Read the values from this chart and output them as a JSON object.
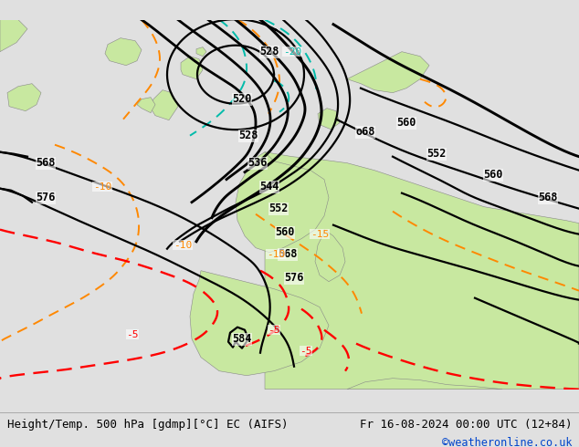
{
  "title_left": "Height/Temp. 500 hPa [gdmp][°C] EC (AIFS)",
  "title_right": "Fr 16-08-2024 00:00 UTC (12+84)",
  "credit": "©weatheronline.co.uk",
  "sea_color": "#c8c8c8",
  "land_color": "#c8e8a0",
  "bottom_bar_color": "#e0e0e0",
  "contour_color": "#000000",
  "orange_color": "#ff8800",
  "red_color": "#ff0000",
  "green_color": "#00cc44",
  "teal_color": "#00bbaa",
  "font_size_labels": 8.5,
  "font_size_bottom": 9,
  "credit_color": "#0044cc",
  "clw": 1.6,
  "tlw": 1.4
}
